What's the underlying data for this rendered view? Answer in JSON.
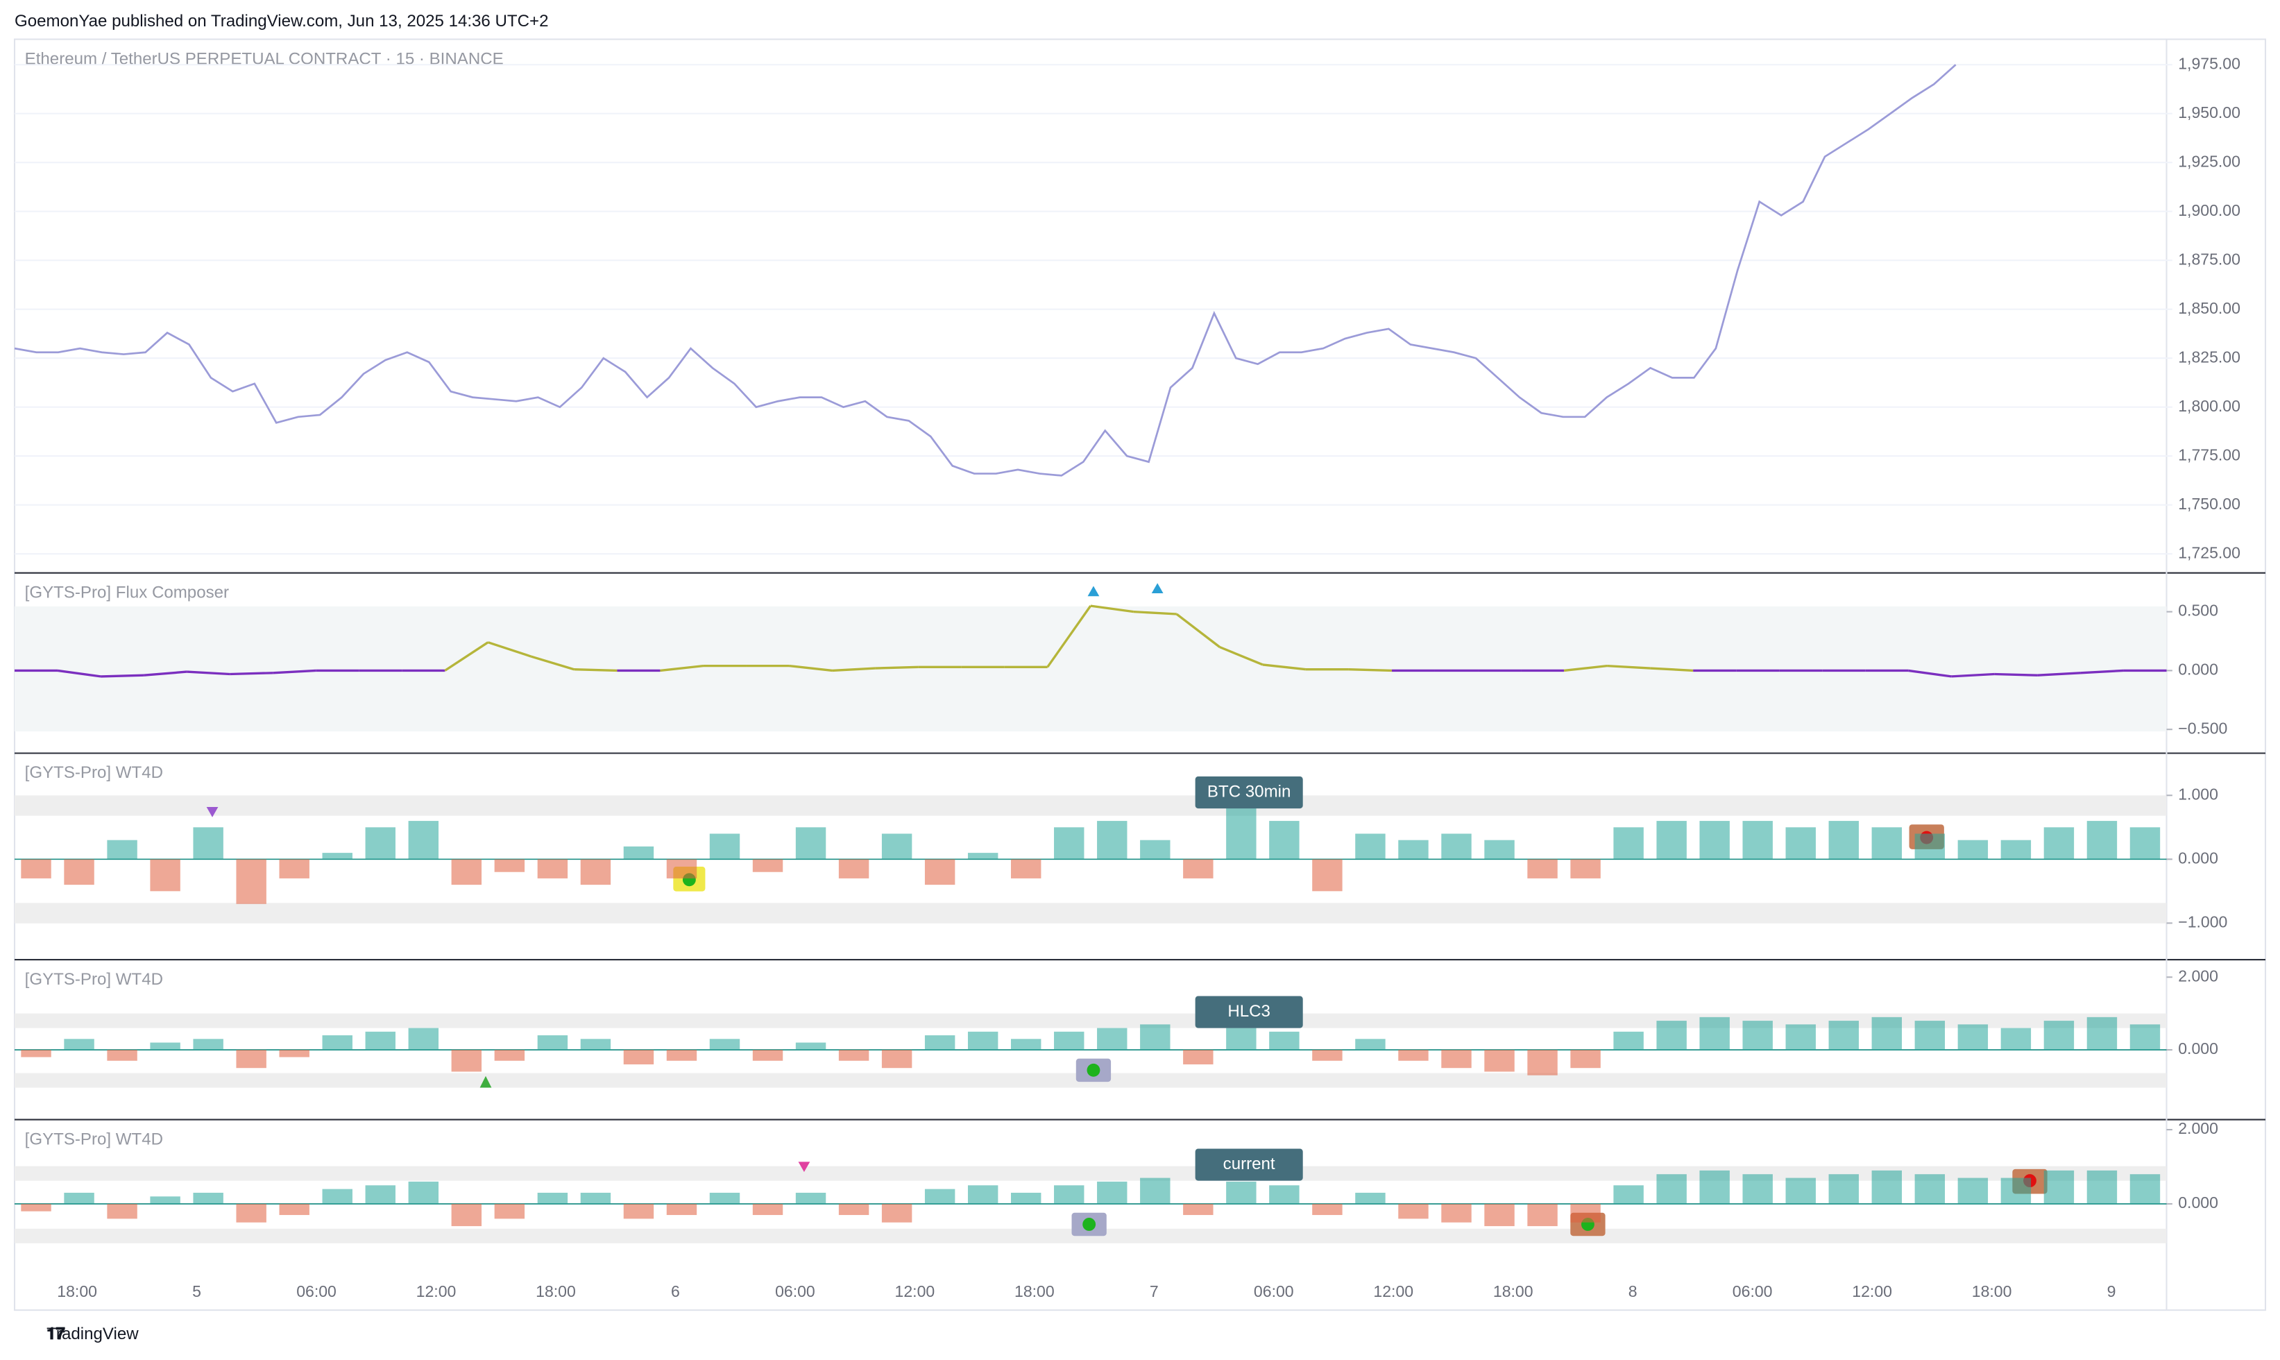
{
  "header": "GoemonYae published on TradingView.com, Jun 13, 2025 14:36 UTC+2",
  "footer": "TradingView",
  "time_axis": [
    "18:00",
    "5",
    "06:00",
    "12:00",
    "18:00",
    "6",
    "06:00",
    "12:00",
    "18:00",
    "7",
    "06:00",
    "12:00",
    "18:00",
    "8",
    "06:00",
    "12:00",
    "18:00",
    "9"
  ],
  "panes": [
    {
      "title": "Ethereum / TetherUS PERPETUAL CONTRACT · 15 · BINANCE",
      "type": "line",
      "color": "#9b9bd8",
      "grid": true,
      "ylim": [
        1716,
        1988
      ],
      "yticks": [
        {
          "value": 1725,
          "label": "1,725.00"
        },
        {
          "value": 1750,
          "label": "1,750.00"
        },
        {
          "value": 1775,
          "label": "1,775.00"
        },
        {
          "value": 1800,
          "label": "1,800.00"
        },
        {
          "value": 1825,
          "label": "1,825.00"
        },
        {
          "value": 1850,
          "label": "1,850.00"
        },
        {
          "value": 1875,
          "label": "1,875.00"
        },
        {
          "value": 1900,
          "label": "1,900.00"
        },
        {
          "value": 1925,
          "label": "1,925.00"
        },
        {
          "value": 1950,
          "label": "1,950.00"
        },
        {
          "value": 1975,
          "label": "1,975.00"
        }
      ],
      "values": [
        1830,
        1828,
        1828,
        1830,
        1828,
        1827,
        1828,
        1838,
        1832,
        1815,
        1808,
        1812,
        1792,
        1795,
        1796,
        1805,
        1817,
        1824,
        1828,
        1823,
        1808,
        1805,
        1804,
        1803,
        1805,
        1800,
        1810,
        1825,
        1818,
        1805,
        1815,
        1830,
        1820,
        1812,
        1800,
        1803,
        1805,
        1805,
        1800,
        1803,
        1795,
        1793,
        1785,
        1770,
        1766,
        1766,
        1768,
        1766,
        1765,
        1772,
        1788,
        1775,
        1772,
        1810,
        1820,
        1848,
        1825,
        1822,
        1828,
        1828,
        1830,
        1835,
        1838,
        1840,
        1832,
        1830,
        1828,
        1825,
        1815,
        1805,
        1797,
        1795,
        1795,
        1805,
        1812,
        1820,
        1815,
        1815,
        1830,
        1870,
        1905,
        1898,
        1905,
        1928,
        1935,
        1942,
        1950,
        1958,
        1965,
        1975
      ]
    },
    {
      "title": "[GYTS-Pro] Flux Composer",
      "type": "line",
      "positive_color": "#b5b53a",
      "negative_color": "#7b2fbf",
      "ylim": [
        -0.69,
        0.83
      ],
      "yticks": [
        {
          "value": -0.5,
          "label": "−0.500"
        },
        {
          "value": 0,
          "label": "0.000"
        },
        {
          "value": 0.5,
          "label": "0.500"
        }
      ],
      "values": [
        0,
        0,
        -0.05,
        -0.04,
        -0.01,
        -0.03,
        -0.02,
        0,
        0,
        0,
        0,
        0.24,
        0.12,
        0.01,
        0,
        0,
        0.04,
        0.04,
        0.04,
        0,
        0.02,
        0.03,
        0.03,
        0.03,
        0.03,
        0.55,
        0.5,
        0.48,
        0.2,
        0.05,
        0.01,
        0.01,
        0,
        0,
        0,
        0,
        0,
        0.04,
        0.02,
        0,
        0,
        0,
        0,
        0,
        0,
        -0.05,
        -0.03,
        -0.04,
        -0.02,
        0,
        0
      ]
    },
    {
      "title": "[GYTS-Pro] WT4D",
      "type": "bar",
      "badge": "BTC 30min",
      "positive_color": "#26a69a",
      "negative_color": "#e0603f",
      "ylim": [
        -1.55,
        1.66
      ],
      "yticks": [
        {
          "value": -1,
          "label": "−1.000"
        },
        {
          "value": 0,
          "label": "0.000"
        },
        {
          "value": 1,
          "label": "1.000"
        }
      ],
      "values": [
        -0.3,
        -0.4,
        0.3,
        -0.5,
        0.5,
        -0.7,
        -0.3,
        0.1,
        0.5,
        0.6,
        -0.4,
        -0.2,
        -0.3,
        -0.4,
        0.2,
        -0.3,
        0.4,
        -0.2,
        0.5,
        -0.3,
        0.4,
        -0.4,
        0.1,
        -0.3,
        0.5,
        0.6,
        0.3,
        -0.3,
        0.8,
        0.6,
        -0.5,
        0.4,
        0.3,
        0.4,
        0.3,
        -0.3,
        -0.3,
        0.5,
        0.6,
        0.6,
        0.6,
        0.5,
        0.6,
        0.5,
        0.4,
        0.3,
        0.3,
        0.5,
        0.6,
        0.5
      ]
    },
    {
      "title": "[GYTS-Pro] WT4D",
      "type": "bar",
      "badge": "HLC3",
      "positive_color": "#26a69a",
      "negative_color": "#e0603f",
      "ylim": [
        -1.88,
        2.48
      ],
      "yticks": [
        {
          "value": 0,
          "label": "0.000"
        },
        {
          "value": 2,
          "label": "2.000"
        }
      ],
      "values": [
        -0.2,
        0.3,
        -0.3,
        0.2,
        0.3,
        -0.5,
        -0.2,
        0.4,
        0.5,
        0.6,
        -0.6,
        -0.3,
        0.4,
        0.3,
        -0.4,
        -0.3,
        0.3,
        -0.3,
        0.2,
        -0.3,
        -0.5,
        0.4,
        0.5,
        0.3,
        0.5,
        0.6,
        0.7,
        -0.4,
        0.6,
        0.5,
        -0.3,
        0.3,
        -0.3,
        -0.5,
        -0.6,
        -0.7,
        -0.5,
        0.5,
        0.8,
        0.9,
        0.8,
        0.7,
        0.8,
        0.9,
        0.8,
        0.7,
        0.6,
        0.8,
        0.9,
        0.7
      ]
    },
    {
      "title": "[GYTS-Pro] WT4D",
      "type": "bar",
      "badge": "current",
      "positive_color": "#26a69a",
      "negative_color": "#e0603f",
      "ylim": [
        -1.57,
        2.27
      ],
      "yticks": [
        {
          "value": 0,
          "label": "0.000"
        },
        {
          "value": 2,
          "label": "2.000"
        }
      ],
      "values": [
        -0.2,
        0.3,
        -0.4,
        0.2,
        0.3,
        -0.5,
        -0.3,
        0.4,
        0.5,
        0.6,
        -0.6,
        -0.4,
        0.3,
        0.3,
        -0.4,
        -0.3,
        0.3,
        -0.3,
        0.3,
        -0.3,
        -0.5,
        0.4,
        0.5,
        0.3,
        0.5,
        0.6,
        0.7,
        -0.3,
        0.6,
        0.5,
        -0.3,
        0.3,
        -0.4,
        -0.5,
        -0.6,
        -0.6,
        -0.5,
        0.5,
        0.8,
        0.9,
        0.8,
        0.7,
        0.8,
        0.9,
        0.8,
        0.7,
        0.7,
        0.9,
        0.9,
        0.8
      ]
    }
  ]
}
